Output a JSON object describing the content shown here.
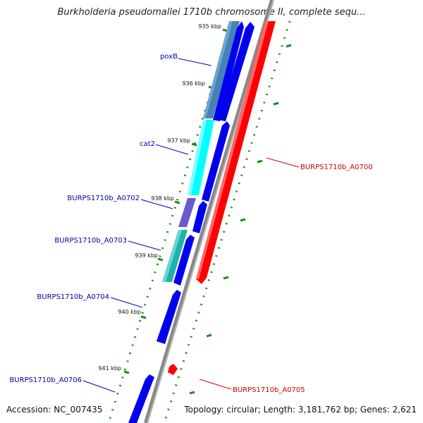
{
  "title": "Burkholderia pseudomallei 1710b chromosome II, complete sequ...",
  "accession": "Accession: NC_007435",
  "topology": "Topology: circular; Length: 3,181,762 bp; Genes: 2,621",
  "ticks": [
    "935 kbp",
    "936 kbp",
    "937 kbp",
    "938 kbp",
    "939 kbp",
    "940 kbp",
    "941 kbp"
  ],
  "genes_left": [
    "poxB",
    "cat2",
    "BURPS1710b_A0702",
    "BURPS1710b_A0703",
    "BURPS1710b_A0704",
    "BURPS1710b_A0706"
  ],
  "genes_right": [
    "BURPS1710b_A0700",
    "BURPS1710b_A0705"
  ],
  "colors": {
    "forward_gene": "#0000ee",
    "reverse_gene": "#ff0000",
    "backbone": "#888888",
    "tick_mark": "#228b22",
    "left_label": "#0000aa",
    "right_label": "#cc0000",
    "cds_steelblue": "#4682b4",
    "cds_cyan": "#00ffff",
    "cds_slateblue": "#6a5acd",
    "cds_teal": "#20b2aa"
  }
}
